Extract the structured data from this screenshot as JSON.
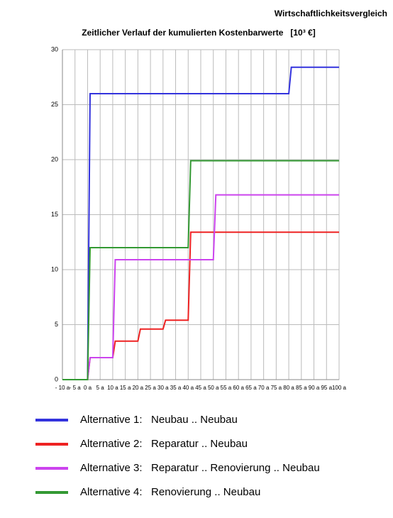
{
  "header": "Wirtschaftlichkeitsvergleich",
  "chart_data": {
    "type": "line",
    "title": "Zeitlicher Verlauf der kumulierten Kostenbarwerte   [10³ €]",
    "x": [
      -10,
      0,
      1,
      10,
      11,
      20,
      21,
      30,
      31,
      40,
      41,
      50,
      51,
      80,
      81,
      100
    ],
    "series": [
      {
        "name": "Alternative 1:   Neubau .. Neubau",
        "color": "#3333dd",
        "values": [
          0,
          0,
          26,
          26,
          26,
          26,
          26,
          26,
          26,
          26,
          26,
          26,
          26,
          26,
          28.4,
          28.4
        ]
      },
      {
        "name": "Alternative 2:   Reparatur .. Neubau",
        "color": "#ee2222",
        "values": [
          0,
          0,
          2,
          2,
          3.5,
          3.5,
          4.6,
          4.6,
          5.4,
          5.4,
          13.4,
          13.4,
          13.4,
          13.4,
          13.4,
          13.4
        ]
      },
      {
        "name": "Alternative 3:   Reparatur .. Renovierung .. Neubau",
        "color": "#cc44ee",
        "values": [
          0,
          0,
          2,
          2,
          10.9,
          10.9,
          10.9,
          10.9,
          10.9,
          10.9,
          10.9,
          10.9,
          16.8,
          16.8,
          16.8,
          16.8
        ]
      },
      {
        "name": "Alternative 4:   Renovierung .. Neubau",
        "color": "#339933",
        "values": [
          0,
          0,
          12,
          12,
          12,
          12,
          12,
          12,
          12,
          12,
          19.9,
          19.9,
          19.9,
          19.9,
          19.9,
          19.9
        ]
      }
    ],
    "xlim": [
      -10,
      100
    ],
    "xticks": [
      {
        "value": -10,
        "label": "- 10 a"
      },
      {
        "value": -5,
        "label": "- 5 a"
      },
      {
        "value": 0,
        "label": "0 a"
      },
      {
        "value": 5,
        "label": "5 a"
      },
      {
        "value": 10,
        "label": "10 a"
      },
      {
        "value": 15,
        "label": "15 a"
      },
      {
        "value": 20,
        "label": "20 a"
      },
      {
        "value": 25,
        "label": "25 a"
      },
      {
        "value": 30,
        "label": "30 a"
      },
      {
        "value": 35,
        "label": "35 a"
      },
      {
        "value": 40,
        "label": "40 a"
      },
      {
        "value": 45,
        "label": "45 a"
      },
      {
        "value": 50,
        "label": "50 a"
      },
      {
        "value": 55,
        "label": "55 a"
      },
      {
        "value": 60,
        "label": "60 a"
      },
      {
        "value": 65,
        "label": "65 a"
      },
      {
        "value": 70,
        "label": "70 a"
      },
      {
        "value": 75,
        "label": "75 a"
      },
      {
        "value": 80,
        "label": "80 a"
      },
      {
        "value": 85,
        "label": "85 a"
      },
      {
        "value": 90,
        "label": "90 a"
      },
      {
        "value": 95,
        "label": "95 a"
      },
      {
        "value": 100,
        "label": "100 a"
      }
    ],
    "ylim": [
      0,
      30
    ],
    "yticks": [
      0,
      5,
      10,
      15,
      20,
      25,
      30
    ],
    "grid": true
  }
}
